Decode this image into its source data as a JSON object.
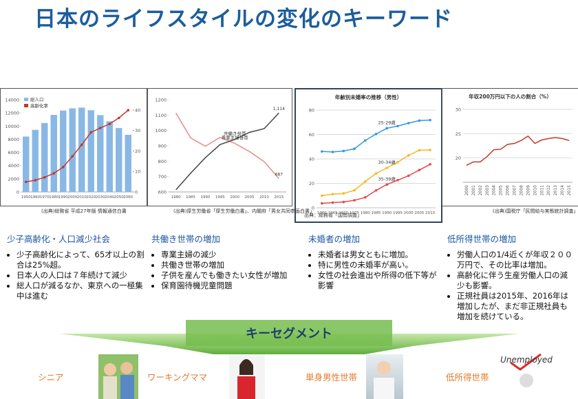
{
  "title": "日本のライフスタイルの変化のキーワード",
  "chart_data": [
    {
      "type": "bar",
      "categories": [
        "1950",
        "1960",
        "1970",
        "1980",
        "1990",
        "2000",
        "2010",
        "2020",
        "2030",
        "2040",
        "2050",
        "2060"
      ],
      "series": [
        {
          "name": "総人口",
          "color": "#8ab8e6",
          "values": [
            8411,
            9430,
            10467,
            11706,
            12361,
            12693,
            12806,
            12410,
            11662,
            10728,
            9708,
            8674
          ]
        },
        {
          "name": "高齢化率",
          "color": "#c0392b",
          "type": "line",
          "axis": "y2",
          "values": [
            4.9,
            5.7,
            7.1,
            9.1,
            12.1,
            17.4,
            23.0,
            29.1,
            31.2,
            33.2,
            36.1,
            39.9
          ]
        }
      ],
      "ylim": [
        0,
        14000
      ],
      "yticks": [
        0,
        2000,
        4000,
        6000,
        8000,
        10000,
        12000,
        14000
      ],
      "y2lim": [
        0,
        45
      ],
      "y2ticks": [
        0,
        10,
        20,
        30,
        40
      ],
      "grid": false,
      "source": "(出典)総務省 平成27年版 情報通信白書"
    },
    {
      "type": "line",
      "categories": [
        "1980",
        "1985",
        "1990",
        "1995",
        "2000",
        "2005",
        "2010",
        "2015"
      ],
      "series": [
        {
          "name": "専業主婦世帯",
          "color": "#e88a8a",
          "values": [
            1114,
            952,
            897,
            955,
            916,
            863,
            797,
            687
          ],
          "value_labels": [
            null,
            null,
            null,
            null,
            null,
            null,
            null,
            "687"
          ]
        },
        {
          "name": "共働き世帯",
          "color": "#444444",
          "values": [
            614,
            722,
            823,
            908,
            942,
            988,
            1012,
            1114
          ],
          "value_labels": [
            null,
            null,
            null,
            null,
            null,
            null,
            null,
            "1,114"
          ]
        }
      ],
      "ylim": [
        600,
        1200
      ],
      "yticks": [
        600,
        700,
        800,
        900,
        1000,
        1100,
        1200
      ],
      "grid": false,
      "source": "(出典)厚生労働省「厚生労働白書」、内閣府「男女共同参画白書」"
    },
    {
      "type": "line",
      "title": "年齢別未婚率の推移（男性）",
      "categories": [
        "1960",
        "1965",
        "1970",
        "1975",
        "1980",
        "1985",
        "1990",
        "1995",
        "2000",
        "2005",
        "2010"
      ],
      "series": [
        {
          "name": "25-29歳",
          "color": "#3399dd",
          "values": [
            46.1,
            45.7,
            46.5,
            48.3,
            55.1,
            60.4,
            65.1,
            66.9,
            69.3,
            71.4,
            71.8
          ]
        },
        {
          "name": "30-34歳",
          "color": "#f5b820",
          "values": [
            9.9,
            11.1,
            11.7,
            14.3,
            21.5,
            28.1,
            32.6,
            37.3,
            42.9,
            47.1,
            47.3
          ]
        },
        {
          "name": "35-39歳",
          "color": "#e8454a",
          "values": [
            3.6,
            4.2,
            4.7,
            6.1,
            8.5,
            14.2,
            19.0,
            22.6,
            26.2,
            30.9,
            35.6
          ]
        }
      ],
      "ylim": [
        0,
        80
      ],
      "yticks": [
        0,
        20,
        40,
        60,
        80
      ],
      "grid": true,
      "source": "出典：総務省「国勢調査」"
    },
    {
      "type": "line",
      "title": "年収200万円以下の人の割合（%）",
      "categories": [
        "2000",
        "2001",
        "2002",
        "2003",
        "2004",
        "2005",
        "2006",
        "2007",
        "2008",
        "2009",
        "2010",
        "2011",
        "2012",
        "2013",
        "2014",
        "2015"
      ],
      "series": [
        {
          "color": "#c0392b",
          "values": [
            18.5,
            19.2,
            19.2,
            20.3,
            21.7,
            21.8,
            22.8,
            23.0,
            23.6,
            24.5,
            23.0,
            23.7,
            24.0,
            24.2,
            24.0,
            23.6
          ]
        }
      ],
      "ylim": [
        15,
        30
      ],
      "yticks": [
        20,
        25,
        30
      ],
      "grid": true,
      "source": "(出典)国税庁「民間給与実態統計調査」"
    }
  ],
  "columns": [
    {
      "heading": "少子高齢化・人口減少社会",
      "bullets": [
        "少子高齢化によって、65才以上の割合は25%超。",
        "日本人の人口は７年続けて減少",
        "総人口が減るなか、東京への一極集中は進む"
      ]
    },
    {
      "heading": "共働き世帯の増加",
      "bullets": [
        "専業主婦の減少",
        "共働き世帯の増加",
        "子供を産んでも働きたい女性が増加",
        "保育園待機児童問題"
      ]
    },
    {
      "heading": "未婚者の増加",
      "bullets": [
        "未婚者は男女ともに増加。",
        "特に男性の未婚率が高い。",
        "女性の社会進出や所得の低下等が影響"
      ]
    },
    {
      "heading": "低所得世帯の増加",
      "bullets": [
        "労働人口の1/4近くが年収２００万円で、その比率は増加。",
        "高齢化に伴う生産労働人口の減少も影響。",
        "正規社員は2015年、2016年は増加したが、まだ非正規社員も増加を続けている。"
      ]
    }
  ],
  "segment_title": "キーセグメント",
  "segments": [
    {
      "label": "シニア"
    },
    {
      "label": "ワーキングママ"
    },
    {
      "label": "単身男性世帯"
    },
    {
      "label": "低所得世帯",
      "photo_text": "Unemployed"
    }
  ]
}
